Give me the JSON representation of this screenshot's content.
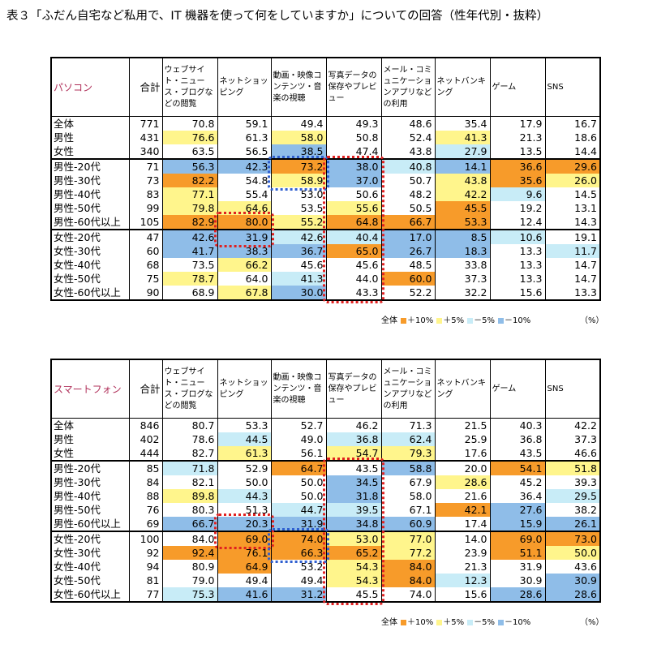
{
  "title": "表３「ふだん自宅など私用で、IT 機器を使って何をしていますか」についての回答（性年代別・抜粋）",
  "columns": [
    "合計",
    "ウェブサイト・ニュース・ブログなどの閲覧",
    "ネットショッピング",
    "動画・映像コンテンツ・音楽の視聴",
    "写真データの保存やプレビュー",
    "メール・コミュニケーションアプリなどの利用",
    "ネットバンキング",
    "ゲーム",
    "SNS"
  ],
  "tables": [
    {
      "device": "パソコン",
      "rows": [
        {
          "label": "全体",
          "values": [
            "771",
            "70.8",
            "59.1",
            "49.4",
            "49.3",
            "48.6",
            "35.4",
            "17.9",
            "16.7"
          ],
          "colors": [
            "",
            "",
            "",
            "",
            "",
            "",
            "",
            "",
            ""
          ]
        },
        {
          "label": "男性",
          "values": [
            "431",
            "76.6",
            "61.3",
            "58.0",
            "50.8",
            "52.4",
            "41.3",
            "21.3",
            "18.6"
          ],
          "colors": [
            "",
            "y",
            "",
            "y",
            "",
            "",
            "y",
            "",
            ""
          ]
        },
        {
          "label": "女性",
          "values": [
            "340",
            "63.5",
            "56.5",
            "38.5",
            "47.4",
            "43.8",
            "27.9",
            "13.5",
            "14.4"
          ],
          "colors": [
            "",
            "",
            "",
            "b",
            "",
            "",
            "c",
            "",
            ""
          ]
        },
        {
          "label": "男性-20代",
          "values": [
            "71",
            "56.3",
            "42.3",
            "73.2",
            "38.0",
            "40.8",
            "14.1",
            "36.6",
            "29.6"
          ],
          "colors": [
            "",
            "b",
            "b",
            "o",
            "b",
            "c",
            "b",
            "o",
            "o"
          ]
        },
        {
          "label": "男性-30代",
          "values": [
            "73",
            "82.2",
            "54.8",
            "58.9",
            "37.0",
            "50.7",
            "43.8",
            "35.6",
            "26.0"
          ],
          "colors": [
            "",
            "o",
            "",
            "y",
            "b",
            "",
            "y",
            "o",
            "y"
          ]
        },
        {
          "label": "男性-40代",
          "values": [
            "83",
            "77.1",
            "55.4",
            "53.0",
            "50.6",
            "48.2",
            "42.2",
            "9.6",
            "14.5"
          ],
          "colors": [
            "",
            "y",
            "",
            "",
            "",
            "",
            "y",
            "c",
            ""
          ]
        },
        {
          "label": "男性-50代",
          "values": [
            "99",
            "79.8",
            "64.6",
            "53.5",
            "55.6",
            "50.5",
            "45.5",
            "19.2",
            "13.1"
          ],
          "colors": [
            "",
            "y",
            "y",
            "",
            "y",
            "",
            "o",
            "",
            ""
          ]
        },
        {
          "label": "男性-60代以上",
          "values": [
            "105",
            "82.9",
            "80.0",
            "55.2",
            "64.8",
            "66.7",
            "53.3",
            "12.4",
            "14.3"
          ],
          "colors": [
            "",
            "o",
            "o",
            "y",
            "o",
            "o",
            "o",
            "",
            ""
          ]
        },
        {
          "label": "女性-20代",
          "values": [
            "47",
            "42.6",
            "31.9",
            "42.6",
            "40.4",
            "17.0",
            "8.5",
            "10.6",
            "19.1"
          ],
          "colors": [
            "",
            "b",
            "b",
            "c",
            "c",
            "b",
            "b",
            "c",
            ""
          ]
        },
        {
          "label": "女性-30代",
          "values": [
            "60",
            "41.7",
            "38.3",
            "36.7",
            "65.0",
            "26.7",
            "18.3",
            "13.3",
            "11.7"
          ],
          "colors": [
            "",
            "b",
            "b",
            "b",
            "o",
            "b",
            "b",
            "",
            "c"
          ]
        },
        {
          "label": "女性-40代",
          "values": [
            "68",
            "73.5",
            "66.2",
            "45.6",
            "45.6",
            "48.5",
            "33.8",
            "13.3",
            "14.7"
          ],
          "colors": [
            "",
            "",
            "y",
            "",
            "",
            "",
            "",
            "",
            ""
          ]
        },
        {
          "label": "女性-50代",
          "values": [
            "75",
            "78.7",
            "64.0",
            "41.3",
            "44.0",
            "60.0",
            "37.3",
            "13.3",
            "14.7"
          ],
          "colors": [
            "",
            "y",
            "",
            "c",
            "",
            "o",
            "",
            "",
            ""
          ]
        },
        {
          "label": "女性-60代以上",
          "values": [
            "90",
            "68.9",
            "67.8",
            "30.0",
            "43.3",
            "52.2",
            "32.2",
            "15.6",
            "13.3"
          ],
          "colors": [
            "",
            "",
            "y",
            "b",
            "",
            "",
            "",
            "",
            ""
          ]
        }
      ]
    },
    {
      "device": "スマートフォン",
      "rows": [
        {
          "label": "全体",
          "values": [
            "846",
            "80.7",
            "53.3",
            "52.7",
            "46.2",
            "71.3",
            "21.5",
            "40.3",
            "42.2"
          ],
          "colors": [
            "",
            "",
            "",
            "",
            "",
            "",
            "",
            "",
            ""
          ]
        },
        {
          "label": "男性",
          "values": [
            "402",
            "78.6",
            "44.5",
            "49.0",
            "36.8",
            "62.4",
            "25.9",
            "36.8",
            "37.3"
          ],
          "colors": [
            "",
            "",
            "c",
            "",
            "c",
            "c",
            "",
            "",
            ""
          ]
        },
        {
          "label": "女性",
          "values": [
            "444",
            "82.7",
            "61.3",
            "56.1",
            "54.7",
            "79.3",
            "17.6",
            "43.5",
            "46.6"
          ],
          "colors": [
            "",
            "",
            "y",
            "",
            "y",
            "y",
            "",
            "",
            ""
          ]
        },
        {
          "label": "男性-20代",
          "values": [
            "85",
            "71.8",
            "52.9",
            "64.7",
            "43.5",
            "58.8",
            "20.0",
            "54.1",
            "51.8"
          ],
          "colors": [
            "",
            "c",
            "",
            "o",
            "",
            "b",
            "",
            "o",
            "y"
          ]
        },
        {
          "label": "男性-30代",
          "values": [
            "84",
            "82.1",
            "50.0",
            "50.0",
            "34.5",
            "67.9",
            "28.6",
            "45.2",
            "39.3"
          ],
          "colors": [
            "",
            "",
            "",
            "",
            "b",
            "",
            "y",
            "",
            ""
          ]
        },
        {
          "label": "男性-40代",
          "values": [
            "88",
            "89.8",
            "44.3",
            "50.0",
            "31.8",
            "58.0",
            "21.6",
            "36.4",
            "29.5"
          ],
          "colors": [
            "",
            "y",
            "c",
            "",
            "b",
            "",
            "",
            "",
            "c"
          ]
        },
        {
          "label": "男性-50代",
          "values": [
            "76",
            "80.3",
            "51.3",
            "44.7",
            "39.5",
            "67.1",
            "42.1",
            "27.6",
            "38.2"
          ],
          "colors": [
            "",
            "",
            "",
            "c",
            "c",
            "",
            "o",
            "b",
            ""
          ]
        },
        {
          "label": "男性-60代以上",
          "values": [
            "69",
            "66.7",
            "20.3",
            "31.9",
            "34.8",
            "60.9",
            "17.4",
            "15.9",
            "26.1"
          ],
          "colors": [
            "",
            "b",
            "b",
            "b",
            "b",
            "b",
            "",
            "b",
            "b"
          ]
        },
        {
          "label": "女性-20代",
          "values": [
            "100",
            "84.0",
            "69.0",
            "74.0",
            "53.0",
            "77.0",
            "14.0",
            "69.0",
            "73.0"
          ],
          "colors": [
            "",
            "",
            "o",
            "o",
            "y",
            "y",
            "",
            "o",
            "o"
          ]
        },
        {
          "label": "女性-30代",
          "values": [
            "92",
            "92.4",
            "76.1",
            "66.3",
            "65.2",
            "77.2",
            "23.9",
            "51.1",
            "50.0"
          ],
          "colors": [
            "",
            "o",
            "o",
            "o",
            "o",
            "y",
            "",
            "o",
            "y"
          ]
        },
        {
          "label": "女性-40代",
          "values": [
            "94",
            "80.9",
            "64.9",
            "53.2",
            "54.3",
            "84.0",
            "21.3",
            "31.9",
            "43.6"
          ],
          "colors": [
            "",
            "",
            "o",
            "",
            "y",
            "o",
            "",
            "",
            ""
          ]
        },
        {
          "label": "女性-50代",
          "values": [
            "81",
            "79.0",
            "49.4",
            "49.4",
            "54.3",
            "84.0",
            "12.3",
            "30.9",
            "30.9"
          ],
          "colors": [
            "",
            "",
            "",
            "",
            "y",
            "o",
            "c",
            "",
            "b"
          ]
        },
        {
          "label": "女性-60代以上",
          "values": [
            "77",
            "75.3",
            "41.6",
            "31.2",
            "45.5",
            "74.0",
            "15.6",
            "28.6",
            "28.6"
          ],
          "colors": [
            "",
            "c",
            "b",
            "b",
            "",
            "",
            "",
            "b",
            "b"
          ]
        }
      ]
    }
  ],
  "legend": {
    "prefix": "全体",
    "items": [
      {
        "label": "＋10%",
        "color": "#f79b2a"
      },
      {
        "label": "＋5%",
        "color": "#fff58c"
      },
      {
        "label": "－5%",
        "color": "#c8ecf7"
      },
      {
        "label": "－10%",
        "color": "#8fbde8"
      }
    ],
    "unit": "（%）"
  },
  "colors": {
    "plus10": "#f79b2a",
    "plus5": "#fff58c",
    "minus5": "#c8ecf7",
    "minus10": "#8fbde8",
    "device_label": "#b0305a",
    "highlight_red": "#e02020",
    "highlight_blue": "#3060d0"
  }
}
